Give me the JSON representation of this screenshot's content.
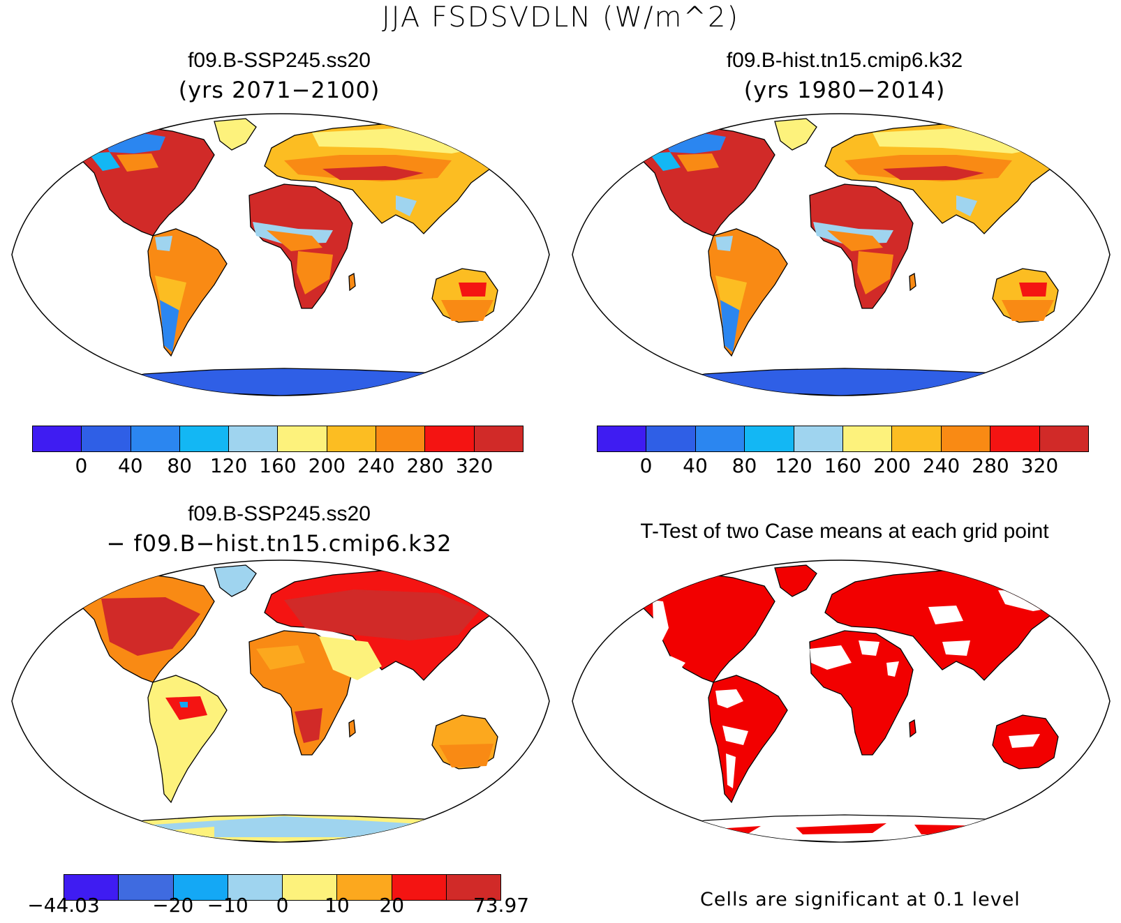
{
  "title": "JJA FSDSVDLN (W/m^2)",
  "panels": [
    {
      "title": "f09.B-SSP245.ss20",
      "subtitle": "(yrs 2071−2100)",
      "type": "field"
    },
    {
      "title": "f09.B-hist.tn15.cmip6.k32",
      "subtitle": "(yrs 1980−2014)",
      "type": "field"
    },
    {
      "title": "f09.B-SSP245.ss20",
      "subtitle": "− f09.B−hist.tn15.cmip6.k32",
      "type": "difference"
    },
    {
      "title": "T-Test of two Case means at each grid point",
      "subtitle": "",
      "type": "ttest"
    }
  ],
  "colorbars": {
    "field": {
      "colors": [
        "#3f1cf2",
        "#2f5fe6",
        "#2b86f0",
        "#13b7f4",
        "#9fd4ef",
        "#fdf27c",
        "#fcbd22",
        "#f98a14",
        "#f41412",
        "#d12a28"
      ],
      "labels": [
        "0",
        "40",
        "80",
        "120",
        "160",
        "200",
        "240",
        "280",
        "320"
      ]
    },
    "diff": {
      "colors": [
        "#3f1cf2",
        "#3f6be0",
        "#14a8f5",
        "#9fd4ef",
        "#fdf27c",
        "#fca81e",
        "#f41412",
        "#d12a28"
      ],
      "labels": [
        "−44.03",
        "−20",
        "−10",
        "0",
        "10",
        "20",
        "73.97"
      ]
    }
  },
  "significance": {
    "color": "#f20000",
    "note": "Cells are significant at 0.1 level"
  },
  "palette": {
    "ocean": "#ffffff",
    "coast": "#000000"
  }
}
